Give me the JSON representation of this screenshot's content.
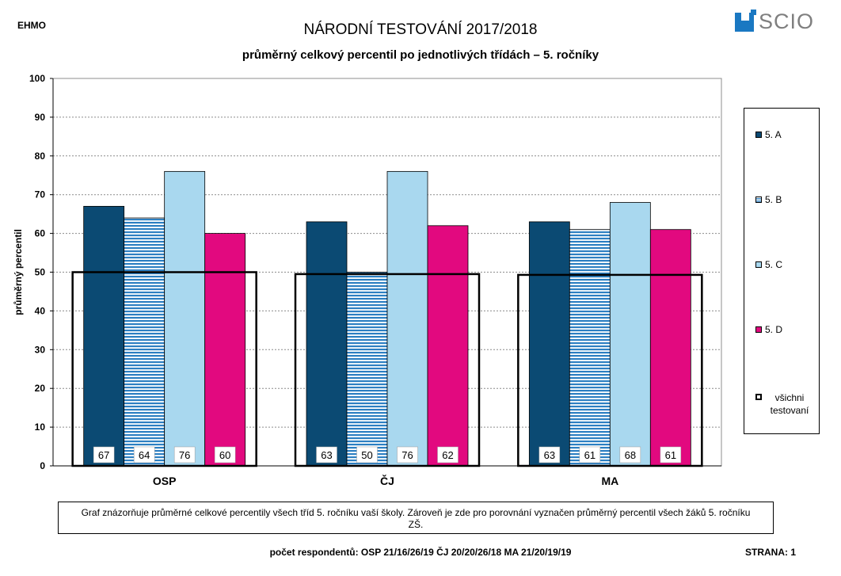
{
  "header": {
    "school_code": "EHMO",
    "title": "NÁRODNÍ TESTOVÁNÍ 2017/2018",
    "subtitle": "průměrný celkový percentil po jednotlivých třídách – 5. ročníky",
    "logo_text": "SCIO"
  },
  "chart_data": {
    "type": "bar",
    "categories": [
      "OSP",
      "ČJ",
      "MA"
    ],
    "series": [
      {
        "name": "5. A",
        "values": [
          67,
          63,
          63
        ],
        "color": "#0b4a73",
        "pattern": "solid"
      },
      {
        "name": "5. B",
        "values": [
          64,
          50,
          61
        ],
        "color": "#2c7fc2",
        "pattern": "horizontal-stripes"
      },
      {
        "name": "5. C",
        "values": [
          76,
          76,
          68
        ],
        "color": "#a9d8ef",
        "pattern": "solid"
      },
      {
        "name": "5. D",
        "values": [
          60,
          62,
          61
        ],
        "color": "#e2097f",
        "pattern": "solid"
      }
    ],
    "reference": {
      "name": "všichni testovaní",
      "values": [
        50,
        49.5,
        49.3
      ],
      "style": "black-outline-box"
    },
    "data_labels": [
      [
        "67",
        "63",
        "63"
      ],
      [
        "64",
        "50",
        "61"
      ],
      [
        "76",
        "76",
        "68"
      ],
      [
        "60",
        "62",
        "61"
      ]
    ],
    "ylabel": "průměrný percentil",
    "ylim": [
      0,
      100
    ],
    "yticks": [
      0,
      10,
      20,
      30,
      40,
      50,
      60,
      70,
      80,
      90,
      100
    ],
    "grid": "horizontal dashed",
    "legend_position": "right"
  },
  "note": "Graf znázorňuje průměrné celkové percentily všech tříd 5. ročníku vaší školy. Zároveň je zde pro porovnání vyznačen průměrný percentil všech žáků 5. ročníku ZŠ.",
  "footer": {
    "respondents": "počet respondentů: OSP 21/16/26/19  ČJ 20/20/26/18  MA 21/20/19/19",
    "page": "STRANA: 1"
  }
}
